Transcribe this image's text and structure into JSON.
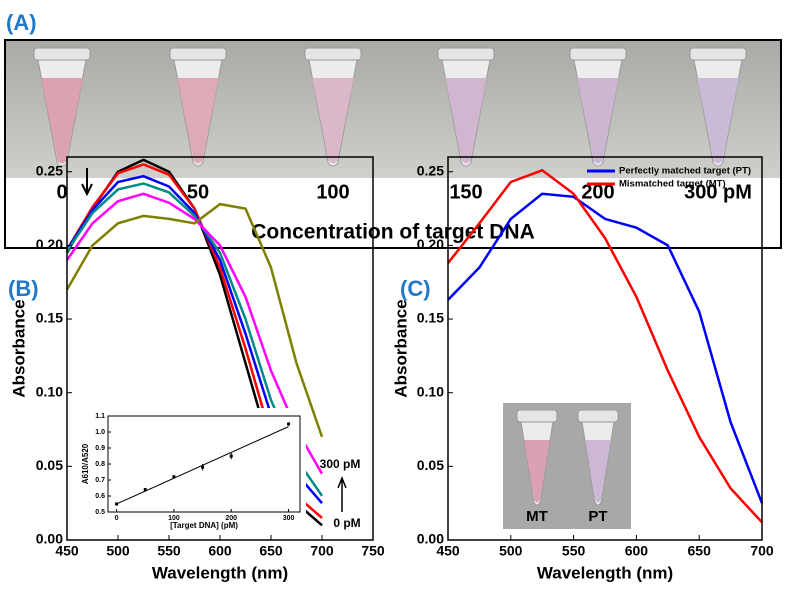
{
  "photo": {
    "label": "(A)",
    "tube_labels": [
      "0",
      "50",
      "100",
      "150",
      "200",
      "300 pM"
    ],
    "caption": "Concentration of target DNA"
  },
  "chart_data": [
    {
      "type": "line",
      "label": "(B)",
      "xlabel": "Wavelength (nm)",
      "ylabel": "Absorbance",
      "x": [
        450,
        475,
        500,
        525,
        550,
        575,
        600,
        625,
        650,
        675,
        700
      ],
      "series": [
        {
          "color": "#000000",
          "values": [
            0.195,
            0.225,
            0.25,
            0.258,
            0.25,
            0.225,
            0.18,
            0.12,
            0.06,
            0.025,
            0.01
          ]
        },
        {
          "color": "#ff0000",
          "values": [
            0.197,
            0.226,
            0.249,
            0.255,
            0.248,
            0.225,
            0.185,
            0.13,
            0.07,
            0.03,
            0.015
          ]
        },
        {
          "color": "#0000ff",
          "values": [
            0.197,
            0.224,
            0.243,
            0.247,
            0.24,
            0.222,
            0.19,
            0.14,
            0.085,
            0.045,
            0.025
          ]
        },
        {
          "color": "#008b8b",
          "values": [
            0.196,
            0.222,
            0.238,
            0.242,
            0.236,
            0.22,
            0.195,
            0.15,
            0.095,
            0.055,
            0.03
          ]
        },
        {
          "color": "#ff00ff",
          "values": [
            0.19,
            0.215,
            0.23,
            0.235,
            0.229,
            0.218,
            0.2,
            0.165,
            0.115,
            0.075,
            0.045
          ]
        },
        {
          "color": "#808000",
          "values": [
            0.17,
            0.2,
            0.215,
            0.22,
            0.218,
            0.215,
            0.228,
            0.225,
            0.185,
            0.12,
            0.07
          ]
        }
      ],
      "xlim": [
        450,
        750
      ],
      "xticks": [
        450,
        500,
        550,
        600,
        650,
        700,
        750
      ],
      "ylim": [
        0,
        0.26
      ],
      "yticks": [
        {
          "value": 0,
          "label": "0.00"
        },
        {
          "value": 0.05,
          "label": "0.05"
        },
        {
          "value": 0.1,
          "label": "0.10"
        },
        {
          "value": 0.15,
          "label": "0.15"
        },
        {
          "value": 0.2,
          "label": "0.20"
        },
        {
          "value": 0.25,
          "label": "0.25"
        }
      ],
      "annotations": [
        "300 pM",
        "0 pM"
      ],
      "inset": {
        "type": "scatter",
        "xlabel": "[Target DNA] (pM)",
        "ylabel": "A610/A520",
        "x": [
          0,
          50,
          100,
          150,
          200,
          300
        ],
        "values": [
          0.55,
          0.64,
          0.72,
          0.78,
          0.85,
          1.05
        ],
        "errors": [
          0.01,
          0.01,
          0.01,
          0.02,
          0.02,
          0.01
        ],
        "xlim": [
          -15,
          320
        ],
        "xticks": [
          0,
          100,
          200,
          300
        ],
        "ylim": [
          0.5,
          1.1
        ],
        "yticks": [
          0.5,
          0.6,
          0.7,
          0.8,
          0.9,
          {
            "value": 1.0,
            "label": "1.0"
          },
          1.1
        ],
        "fit_line": true
      }
    },
    {
      "type": "line",
      "label": "(C)",
      "xlabel": "Wavelength (nm)",
      "ylabel": "Absorbance",
      "x": [
        450,
        475,
        500,
        525,
        550,
        575,
        600,
        625,
        650,
        675,
        700
      ],
      "series": [
        {
          "name": "Perfectly matched target (PT)",
          "color": "#0000ff",
          "values": [
            0.163,
            0.185,
            0.218,
            0.235,
            0.233,
            0.218,
            0.212,
            0.2,
            0.155,
            0.08,
            0.025
          ]
        },
        {
          "name": "Mismatched target (MT)",
          "color": "#ff0000",
          "values": [
            0.188,
            0.215,
            0.243,
            0.251,
            0.235,
            0.205,
            0.165,
            0.115,
            0.07,
            0.035,
            0.012
          ]
        }
      ],
      "xlim": [
        450,
        700
      ],
      "xticks": [
        450,
        500,
        550,
        600,
        650,
        700
      ],
      "ylim": [
        0,
        0.26
      ],
      "yticks": [
        {
          "value": 0,
          "label": "0.00"
        },
        {
          "value": 0.05,
          "label": "0.05"
        },
        {
          "value": 0.1,
          "label": "0.10"
        },
        {
          "value": 0.15,
          "label": "0.15"
        },
        {
          "value": 0.2,
          "label": "0.20"
        },
        {
          "value": 0.25,
          "label": "0.25"
        }
      ],
      "legend": "upper right",
      "inset_labels": [
        "MT",
        "PT"
      ]
    }
  ]
}
